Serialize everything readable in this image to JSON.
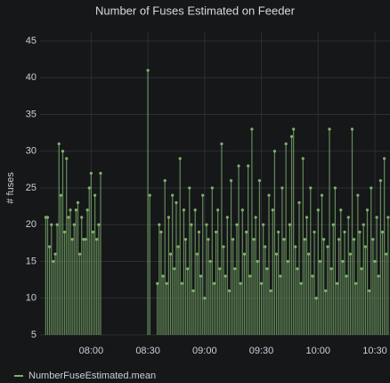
{
  "chart_data": {
    "type": "stem",
    "title": "Number of Fuses Estimated on Feeder",
    "y_label": "# fuses",
    "x": [
      "07:36",
      "07:37",
      "07:38",
      "07:39",
      "07:40",
      "07:41",
      "07:42",
      "07:43",
      "07:44",
      "07:45",
      "07:46",
      "07:47",
      "07:48",
      "07:49",
      "07:50",
      "07:51",
      "07:52",
      "07:53",
      "07:54",
      "07:55",
      "07:56",
      "07:57",
      "07:58",
      "07:59",
      "08:00",
      "08:01",
      "08:02",
      "08:03",
      "08:04",
      "08:05",
      "08:30",
      "08:31",
      "08:35",
      "08:36",
      "08:37",
      "08:38",
      "08:39",
      "08:40",
      "08:41",
      "08:42",
      "08:43",
      "08:44",
      "08:45",
      "08:46",
      "08:47",
      "08:48",
      "08:49",
      "08:50",
      "08:51",
      "08:52",
      "08:53",
      "08:54",
      "08:55",
      "08:56",
      "08:57",
      "08:58",
      "08:59",
      "09:00",
      "09:01",
      "09:02",
      "09:03",
      "09:04",
      "09:05",
      "09:06",
      "09:07",
      "09:08",
      "09:09",
      "09:10",
      "09:11",
      "09:12",
      "09:13",
      "09:14",
      "09:15",
      "09:16",
      "09:17",
      "09:18",
      "09:19",
      "09:20",
      "09:21",
      "09:22",
      "09:23",
      "09:24",
      "09:25",
      "09:26",
      "09:27",
      "09:28",
      "09:29",
      "09:30",
      "09:31",
      "09:32",
      "09:33",
      "09:34",
      "09:35",
      "09:36",
      "09:37",
      "09:38",
      "09:39",
      "09:40",
      "09:41",
      "09:42",
      "09:43",
      "09:44",
      "09:45",
      "09:46",
      "09:47",
      "09:48",
      "09:49",
      "09:50",
      "09:51",
      "09:52",
      "09:53",
      "09:54",
      "09:55",
      "09:56",
      "09:57",
      "09:58",
      "09:59",
      "10:00",
      "10:01",
      "10:02",
      "10:03",
      "10:04",
      "10:05",
      "10:06",
      "10:07",
      "10:08",
      "10:09",
      "10:10",
      "10:11",
      "10:12",
      "10:13",
      "10:14",
      "10:15",
      "10:16",
      "10:17",
      "10:18",
      "10:19",
      "10:20",
      "10:21",
      "10:22",
      "10:23",
      "10:24",
      "10:25",
      "10:26",
      "10:27",
      "10:28",
      "10:29",
      "10:30",
      "10:31",
      "10:32",
      "10:33",
      "10:34",
      "10:35",
      "10:36",
      "10:37"
    ],
    "series": [
      {
        "name": "NumberFuseEstimated.mean",
        "color": "#7eb26d",
        "values": [
          21,
          21,
          17,
          20,
          15,
          16,
          20,
          31,
          24,
          30,
          19,
          29,
          21,
          22,
          18,
          20,
          22,
          23,
          16,
          21,
          18,
          18,
          22,
          25,
          27,
          19,
          24,
          18,
          20,
          27,
          41,
          24,
          12,
          20,
          19,
          13,
          26,
          12,
          21,
          16,
          24,
          14,
          23,
          17,
          29,
          12,
          22,
          18,
          14,
          25,
          20,
          11,
          22,
          16,
          19,
          13,
          24,
          10,
          20,
          18,
          15,
          25,
          12,
          19,
          22,
          14,
          31,
          17,
          13,
          21,
          11,
          26,
          18,
          14,
          20,
          28,
          12,
          22,
          16,
          19,
          28,
          13,
          33,
          18,
          21,
          15,
          26,
          12,
          20,
          17,
          14,
          24,
          11,
          22,
          30,
          16,
          19,
          13,
          25,
          18,
          31,
          15,
          20,
          32,
          33,
          17,
          14,
          23,
          12,
          29,
          18,
          21,
          16,
          25,
          13,
          19,
          10,
          22,
          15,
          24,
          18,
          11,
          17,
          33,
          14,
          20,
          25,
          12,
          18,
          22,
          15,
          19,
          13,
          21,
          16,
          33,
          18,
          12,
          24,
          19,
          14,
          20,
          17,
          22,
          11,
          25,
          18,
          15,
          21,
          13,
          26,
          19,
          29,
          16,
          21
        ]
      }
    ],
    "xlim": [
      "07:33",
      "10:38"
    ],
    "xticks": [
      "08:00",
      "08:30",
      "09:00",
      "09:30",
      "10:00",
      "10:30"
    ],
    "ylim": [
      5,
      45
    ],
    "yticks": [
      5,
      10,
      15,
      20,
      25,
      30,
      35,
      40,
      45
    ],
    "grid": true
  }
}
